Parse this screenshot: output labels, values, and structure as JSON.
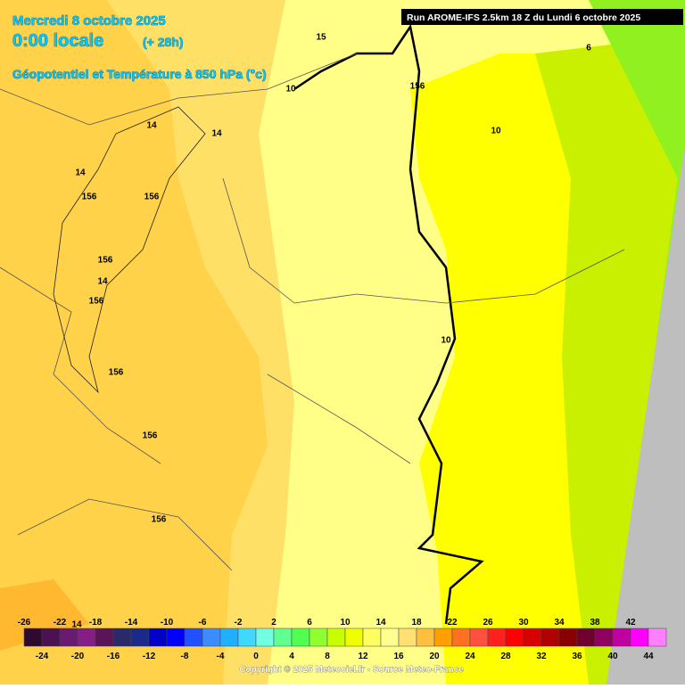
{
  "header": {
    "date": "Mercredi 8 octobre 2025",
    "time": "0:00 locale",
    "offset": "(+ 28h)",
    "field": "Géopotentiel et Température à 850 hPa (°c)",
    "run": "Run AROME-IFS 2.5km 18 Z du Lundi 6 octobre 2025"
  },
  "contour_labels": [
    "15",
    "10",
    "156",
    "6",
    "10",
    "14",
    "14",
    "14",
    "156",
    "156",
    "156",
    "14",
    "156",
    "156",
    "156",
    "156",
    "10",
    "14"
  ],
  "legend": {
    "values": [
      -26,
      -24,
      -22,
      -20,
      -18,
      -16,
      -14,
      -12,
      -10,
      -8,
      -6,
      -4,
      -2,
      0,
      2,
      4,
      6,
      8,
      10,
      12,
      14,
      16,
      18,
      20,
      22,
      24,
      26,
      28,
      30,
      32,
      34,
      36,
      38,
      40,
      42,
      44
    ],
    "colors": [
      "#2e0a30",
      "#4b1150",
      "#6b1a72",
      "#851e87",
      "#5c1458",
      "#2a2a6a",
      "#1a2a8a",
      "#0000c8",
      "#0000ff",
      "#2050ff",
      "#3a8cff",
      "#20b0ff",
      "#40d8ff",
      "#70ffe0",
      "#60ff90",
      "#50ff50",
      "#90ff30",
      "#c8ff00",
      "#f0ff00",
      "#ffff60",
      "#ffff90",
      "#ffe070",
      "#ffc040",
      "#ffa000",
      "#ff7020",
      "#ff5040",
      "#ff2020",
      "#ff0000",
      "#d80000",
      "#b00000",
      "#880000",
      "#700030",
      "#900060",
      "#c000a0",
      "#ff00ff",
      "#ff80ff"
    ]
  },
  "footer": "Copyright © 2025 Meteociel.fr - Source Meteo-France"
}
